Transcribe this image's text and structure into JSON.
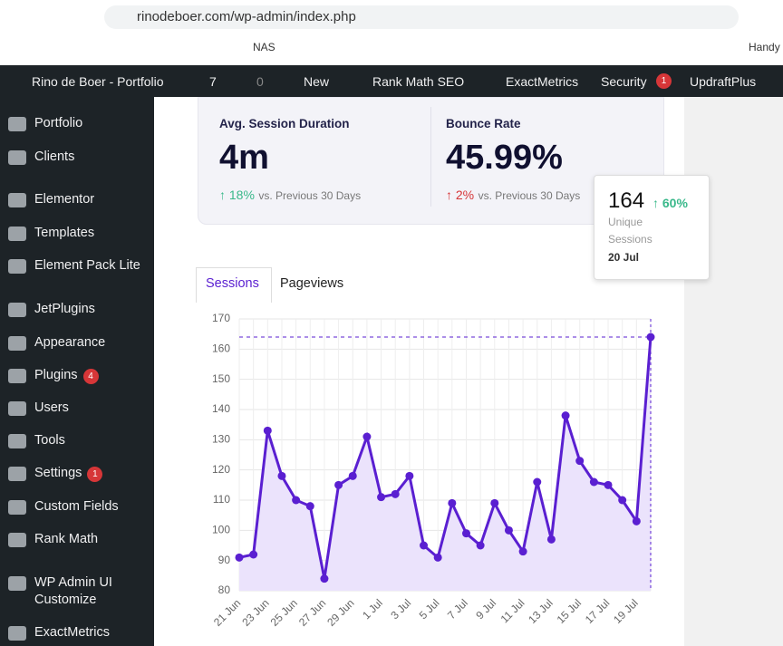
{
  "browser": {
    "url": "rinodeboer.com/wp-admin/index.php",
    "bookmarks": [
      "NAS",
      "Handy"
    ]
  },
  "admin_bar": {
    "site": "Rino de Boer - Portfolio",
    "updates": 7,
    "comments": 0,
    "new": "New",
    "items": [
      "Rank Math SEO",
      "ExactMetrics",
      "Security",
      "UpdraftPlus"
    ],
    "security_badge": 1
  },
  "sidebar": [
    {
      "label": "Portfolio"
    },
    {
      "label": "Clients"
    },
    {
      "label": "Elementor"
    },
    {
      "label": "Templates"
    },
    {
      "label": "Element Pack Lite"
    },
    {
      "label": "JetPlugins"
    },
    {
      "label": "Appearance"
    },
    {
      "label": "Plugins",
      "badge": 4
    },
    {
      "label": "Users"
    },
    {
      "label": "Tools"
    },
    {
      "label": "Settings",
      "badge": 1
    },
    {
      "label": "Custom Fields"
    },
    {
      "label": "Rank Math"
    },
    {
      "label": "WP Admin UI Customize"
    },
    {
      "label": "ExactMetrics"
    }
  ],
  "stats": [
    {
      "title": "Avg. Session Duration",
      "value": "4m",
      "change": "18%",
      "comparison": "vs. Previous 30 Days"
    },
    {
      "title": "Bounce Rate",
      "value": "45.99%",
      "change": "2%",
      "comparison": "vs. Previous 30 Days"
    }
  ],
  "tabs": [
    "Sessions",
    "Pageviews"
  ],
  "tooltip": {
    "value": "164",
    "change": "60%",
    "label_1": "Unique",
    "label_2": "Sessions",
    "date": "20 Jul"
  },
  "chart_data": {
    "type": "line",
    "color": "#5a1fd1",
    "fill": "#ebe3fc",
    "categories": [
      "21 Jun",
      null,
      "23 Jun",
      null,
      "25 Jun",
      null,
      "27 Jun",
      null,
      "29 Jun",
      null,
      "1 Jul",
      null,
      "3 Jul",
      null,
      "5 Jul",
      null,
      "7 Jul",
      null,
      "9 Jul",
      null,
      "11 Jul",
      null,
      "13 Jul",
      null,
      "15 Jul",
      null,
      "17 Jul",
      null,
      "19 Jul",
      null
    ],
    "values": [
      91,
      92,
      133,
      118,
      110,
      108,
      84,
      115,
      118,
      131,
      111,
      112,
      118,
      95,
      91,
      109,
      99,
      95,
      109,
      100,
      93,
      116,
      97,
      138,
      123,
      116,
      115,
      110,
      103,
      164
    ],
    "ylim": [
      80,
      170
    ],
    "yticks": [
      80,
      90,
      100,
      110,
      120,
      130,
      140,
      150,
      160,
      170
    ],
    "grid": true
  }
}
